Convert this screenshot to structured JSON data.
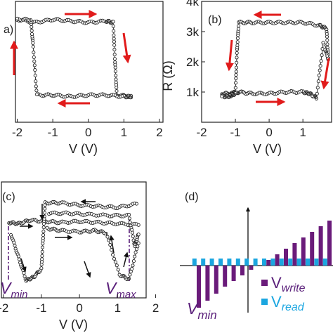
{
  "chart_data": [
    {
      "type": "line",
      "panel_label": "a)",
      "xlabel": "V (V)",
      "x_ticks": [
        "-2",
        "-1",
        "0",
        "1",
        "2"
      ],
      "xlim": [
        -2.05,
        2.1
      ],
      "ylim": [
        0,
        4
      ],
      "series": [
        {
          "x": [
            -2.0,
            -1.5,
            -1.0,
            -0.5,
            0.0,
            0.5,
            0.7,
            0.75,
            0.8,
            1.2
          ],
          "y": [
            3.4,
            3.3,
            3.4,
            3.35,
            3.3,
            3.35,
            3.3,
            2.0,
            0.9,
            0.85
          ]
        },
        {
          "x": [
            1.2,
            1.0,
            0.5,
            0.0,
            -0.5,
            -1.0,
            -1.45,
            -1.55,
            -1.62,
            -2.0
          ],
          "y": [
            0.85,
            0.85,
            0.9,
            0.9,
            0.85,
            0.9,
            0.9,
            2.5,
            3.4,
            3.4
          ]
        }
      ],
      "arrows": [
        "right",
        "down",
        "left",
        "up"
      ]
    },
    {
      "type": "line",
      "panel_label": "(b)",
      "xlabel": "V (V)",
      "ylabel": "R (Ω)",
      "x_ticks": [
        "-2",
        "-1",
        "0",
        "1",
        "2"
      ],
      "y_ticks": [
        "1k",
        "2k",
        "3k",
        "4k"
      ],
      "xlim": [
        -2,
        1.85
      ],
      "ylim": [
        0,
        4000
      ],
      "series": [
        {
          "x": [
            -1.4,
            -1.1,
            -1.0,
            -0.95,
            -0.9,
            -0.5,
            0.0,
            0.5,
            1.0,
            1.5,
            1.7,
            1.75
          ],
          "y": [
            950,
            950,
            1000,
            2400,
            3300,
            3300,
            3300,
            3300,
            3300,
            3200,
            3100,
            2100
          ]
        },
        {
          "x": [
            1.75,
            1.6,
            1.4,
            1.2,
            1.0,
            0.5,
            0.0,
            -0.5,
            -0.9,
            -1.1,
            -1.2,
            -1.4
          ],
          "y": [
            2100,
            2600,
            800,
            950,
            1000,
            1000,
            950,
            950,
            1000,
            900,
            850,
            850
          ]
        }
      ],
      "arrows": [
        "left",
        "down",
        "right",
        "up"
      ]
    },
    {
      "type": "line",
      "panel_label": "(c)",
      "xlabel": "V (V)",
      "x_ticks": [
        "-2",
        "-1",
        "0",
        "1",
        "2"
      ],
      "xlim": [
        -2.05,
        1.75
      ],
      "ylim": [
        0,
        10
      ],
      "annotations": [
        "Vmin",
        "Vmax"
      ],
      "series": [
        {
          "x": [
            -1.85,
            -1.6,
            -1.3,
            -0.9,
            -0.5,
            0.0,
            0.5,
            1.0,
            1.55
          ],
          "y": [
            6.5,
            6.4,
            6.7,
            6.6,
            6.5,
            6.6,
            6.5,
            6.4,
            6.3
          ]
        },
        {
          "x": [
            -1.8,
            -1.6,
            -1.4,
            -1.2,
            -1.0,
            -0.95,
            -0.9,
            -0.5,
            0.0,
            0.5,
            1.0,
            1.5
          ],
          "y": [
            5.5,
            3.5,
            1.5,
            1.8,
            2.5,
            5.5,
            8.2,
            8.2,
            8.0,
            7.9,
            7.8,
            8.1
          ]
        },
        {
          "x": [
            1.55,
            1.3,
            1.05,
            0.7,
            0.4,
            0.0,
            -0.5,
            -0.85
          ],
          "y": [
            4.8,
            1.6,
            2.0,
            5.6,
            5.8,
            5.7,
            5.8,
            6.0
          ]
        },
        {
          "x": [
            -0.8,
            -0.3,
            0.2,
            0.8,
            1.3,
            1.45,
            1.55
          ],
          "y": [
            7.3,
            7.3,
            7.2,
            7.1,
            7.1,
            4.5,
            5.5
          ]
        }
      ],
      "arrows": [
        "left",
        "right",
        "right",
        "down",
        "up",
        "up",
        "down"
      ]
    },
    {
      "type": "bar",
      "panel_label": "(d)",
      "x_labels": [
        "Vmin"
      ],
      "legend": [
        "V_write",
        "V_read"
      ],
      "legend_position": "bottom-right",
      "series": [
        {
          "name": "V_write",
          "color": "#6a1b7a",
          "values": [
            -3.0,
            -2.5,
            -2.0,
            -1.5,
            -1.1,
            -0.7,
            -0.3,
            0.0,
            0.4,
            0.8,
            1.2,
            1.6,
            2.0,
            2.4,
            2.8,
            3.2
          ]
        },
        {
          "name": "V_read",
          "color": "#1ba6e0",
          "values": [
            0.5,
            0.5,
            0.5,
            0.5,
            0.5,
            0.5,
            0.5,
            0.5,
            0.5,
            0.5,
            0.5,
            0.5,
            0.5,
            0.5,
            0.5,
            0.5
          ]
        }
      ]
    }
  ],
  "labels": {
    "a_panel": "a)",
    "a_x": "V (V)",
    "b_panel": "(b)",
    "b_x": "V (V)",
    "b_y": "R (Ω)",
    "c_panel": "(c)",
    "c_x": "V (V)",
    "c_vmin": "V",
    "c_vmin_sub": "min",
    "c_vmax": "V",
    "c_vmax_sub": "max",
    "d_panel": "(d)",
    "d_vmin": "V",
    "d_vmin_sub": "min",
    "d_write": "V",
    "d_write_sub": "write",
    "d_read": "V",
    "d_read_sub": "read"
  },
  "ticks": {
    "a_x": [
      "-2",
      "-1",
      "0",
      "1",
      "2"
    ],
    "b_x": [
      "-2",
      "-1",
      "0",
      "1",
      "2"
    ],
    "b_y": [
      "1k",
      "2k",
      "3k",
      "4k"
    ],
    "c_x": [
      "-2",
      "-1",
      "0",
      "1",
      "2"
    ]
  },
  "colors": {
    "arrow": "#e11b1b",
    "marker": "#222222",
    "write": "#6a1b7a",
    "read": "#1ba6e0",
    "annotation": "#5a1f7a"
  }
}
